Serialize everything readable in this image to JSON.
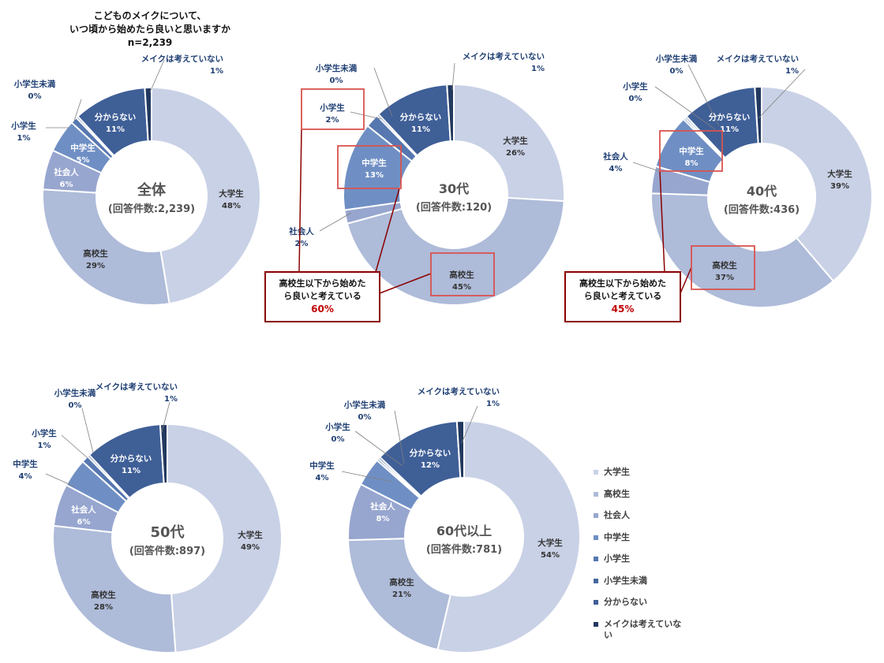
{
  "title": {
    "line1": "こどものメイクについて、",
    "line2": "いつ頃から始めたら良いと思いますか",
    "line3": "n=2,239"
  },
  "legend": [
    {
      "label": "大学生",
      "color": "#c9d1e6"
    },
    {
      "label": "高校生",
      "color": "#aebbd9"
    },
    {
      "label": "社会人",
      "color": "#97a6cf"
    },
    {
      "label": "中学生",
      "color": "#6f8fc4"
    },
    {
      "label": "小学生",
      "color": "#5677b0"
    },
    {
      "label": "小学生未満",
      "color": "#47679f"
    },
    {
      "label": "分からない",
      "color": "#3f5f97"
    },
    {
      "label": "メイクは考えていない",
      "color": "#23395f"
    }
  ],
  "chart_data": [
    {
      "type": "pie",
      "center_title": "全体",
      "center_sub": "(回答件数:2,239)",
      "slices": [
        {
          "label": "大学生",
          "value": 48,
          "text": "48%"
        },
        {
          "label": "高校生",
          "value": 29,
          "text": "29%"
        },
        {
          "label": "社会人",
          "value": 6,
          "text": "6%"
        },
        {
          "label": "中学生",
          "value": 5,
          "text": "5%"
        },
        {
          "label": "小学生",
          "value": 1,
          "text": "1%"
        },
        {
          "label": "小学生未満",
          "value": 0,
          "text": "0%"
        },
        {
          "label": "分からない",
          "value": 11,
          "text": "11%"
        },
        {
          "label": "メイクは考えていない",
          "value": 1,
          "text": "1%"
        }
      ]
    },
    {
      "type": "pie",
      "center_title": "30代",
      "center_sub": "(回答件数:120)",
      "slices": [
        {
          "label": "大学生",
          "value": 26,
          "text": "26%"
        },
        {
          "label": "高校生",
          "value": 45,
          "text": "45%"
        },
        {
          "label": "社会人",
          "value": 2,
          "text": "2%"
        },
        {
          "label": "中学生",
          "value": 13,
          "text": "13%"
        },
        {
          "label": "小学生",
          "value": 2,
          "text": "2%"
        },
        {
          "label": "小学生未満",
          "value": 0,
          "text": "0%"
        },
        {
          "label": "分からない",
          "value": 11,
          "text": "11%"
        },
        {
          "label": "メイクは考えていない",
          "value": 1,
          "text": "1%"
        }
      ],
      "callout": {
        "line1": "高校生以下から始めた",
        "line2": "ら良いと考えている",
        "value": "60%"
      }
    },
    {
      "type": "pie",
      "center_title": "40代",
      "center_sub": "(回答件数:436)",
      "slices": [
        {
          "label": "大学生",
          "value": 39,
          "text": "39%"
        },
        {
          "label": "高校生",
          "value": 37,
          "text": "37%"
        },
        {
          "label": "社会人",
          "value": 4,
          "text": "4%"
        },
        {
          "label": "中学生",
          "value": 8,
          "text": "8%"
        },
        {
          "label": "小学生",
          "value": 0,
          "text": "0%"
        },
        {
          "label": "小学生未満",
          "value": 0,
          "text": "0%"
        },
        {
          "label": "分からない",
          "value": 11,
          "text": "11%"
        },
        {
          "label": "メイクは考えていない",
          "value": 1,
          "text": "1%"
        }
      ],
      "callout": {
        "line1": "高校生以下から始めた",
        "line2": "ら良いと考えている",
        "value": "45%"
      }
    },
    {
      "type": "pie",
      "center_title": "50代",
      "center_sub": "(回答件数:897)",
      "slices": [
        {
          "label": "大学生",
          "value": 49,
          "text": "49%"
        },
        {
          "label": "高校生",
          "value": 28,
          "text": "28%"
        },
        {
          "label": "社会人",
          "value": 6,
          "text": "6%"
        },
        {
          "label": "中学生",
          "value": 4,
          "text": "4%"
        },
        {
          "label": "小学生",
          "value": 1,
          "text": "1%"
        },
        {
          "label": "小学生未満",
          "value": 0,
          "text": "0%"
        },
        {
          "label": "分からない",
          "value": 11,
          "text": "11%"
        },
        {
          "label": "メイクは考えていない",
          "value": 1,
          "text": "1%"
        }
      ]
    },
    {
      "type": "pie",
      "center_title": "60代以上",
      "center_sub": "(回答件数:781)",
      "slices": [
        {
          "label": "大学生",
          "value": 54,
          "text": "54%"
        },
        {
          "label": "高校生",
          "value": 21,
          "text": "21%"
        },
        {
          "label": "社会人",
          "value": 8,
          "text": "8%"
        },
        {
          "label": "中学生",
          "value": 4,
          "text": "4%"
        },
        {
          "label": "小学生",
          "value": 0,
          "text": "0%"
        },
        {
          "label": "小学生未満",
          "value": 0,
          "text": "0%"
        },
        {
          "label": "分からない",
          "value": 12,
          "text": "12%"
        },
        {
          "label": "メイクは考えていない",
          "value": 1,
          "text": "1%"
        }
      ]
    }
  ]
}
